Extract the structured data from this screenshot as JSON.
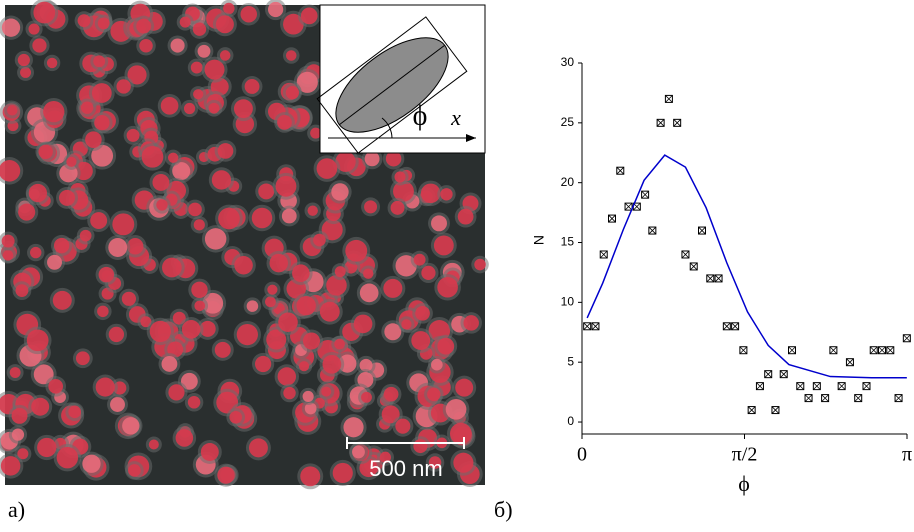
{
  "panel_labels": [
    "a)",
    "б)"
  ],
  "image_panel": {
    "scale_bar": "500 nm",
    "inset_angle_label": "ϕ",
    "inset_axis_label": "x"
  },
  "chart_data": {
    "type": "scatter",
    "xlabel": "ϕ",
    "ylabel": "N",
    "xlim": [
      0,
      3.1416
    ],
    "ylim": [
      -1,
      30
    ],
    "xticks": [
      0,
      {
        "value": 1.5708,
        "label": "π/2"
      },
      {
        "value": 3.1416,
        "label": "π"
      }
    ],
    "yticks": [
      0,
      5,
      10,
      15,
      20,
      25,
      30
    ],
    "series": [
      {
        "mode": "markers",
        "color": "#000000",
        "x": [
          0.05,
          0.13,
          0.21,
          0.29,
          0.37,
          0.45,
          0.53,
          0.61,
          0.68,
          0.76,
          0.84,
          0.92,
          1.0,
          1.08,
          1.16,
          1.24,
          1.32,
          1.4,
          1.48,
          1.56,
          1.64,
          1.72,
          1.8,
          1.87,
          1.95,
          2.03,
          2.11,
          2.19,
          2.27,
          2.35,
          2.43,
          2.51,
          2.59,
          2.67,
          2.75,
          2.82,
          2.9,
          2.98,
          3.06,
          3.14
        ],
        "values": [
          8,
          8,
          14,
          17,
          21,
          18,
          18,
          19,
          16,
          25,
          27,
          25,
          14,
          13,
          16,
          12,
          12,
          8,
          8,
          6,
          1,
          3,
          4,
          1,
          4,
          6,
          3,
          2,
          3,
          2,
          6,
          3,
          5,
          2,
          3,
          6,
          6,
          6,
          2,
          7
        ]
      },
      {
        "mode": "line",
        "color": "#0000cc",
        "x": [
          0.05,
          0.2,
          0.4,
          0.6,
          0.8,
          1.0,
          1.2,
          1.4,
          1.6,
          1.8,
          2.0,
          2.4,
          2.8,
          3.14
        ],
        "values": [
          8.7,
          11.6,
          16.1,
          20.2,
          22.3,
          21.3,
          17.9,
          13.3,
          9.2,
          6.4,
          4.8,
          3.8,
          3.7,
          3.7
        ]
      }
    ]
  }
}
